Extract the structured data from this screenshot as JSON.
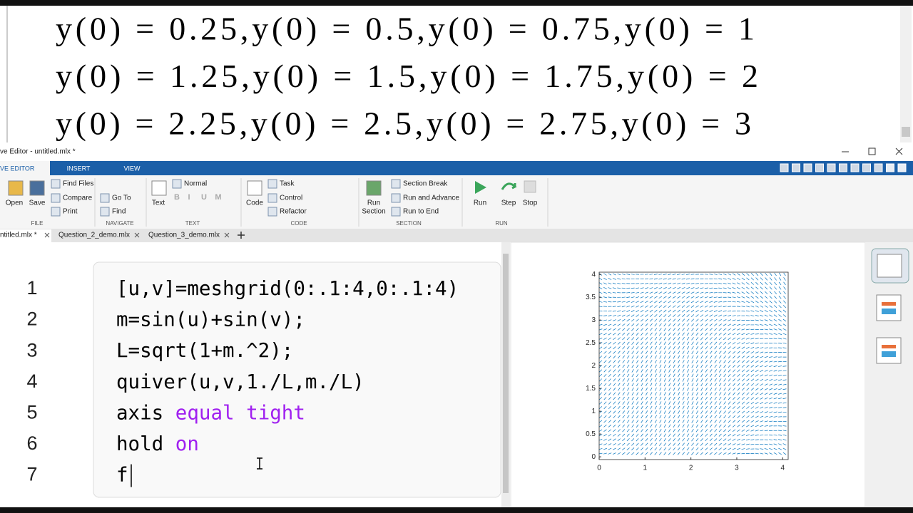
{
  "equations": [
    "y(0) = 0.25,y(0) = 0.5,y(0) = 0.75,y(0) = 1",
    "y(0) = 1.25,y(0) = 1.5,y(0) = 1.75,y(0) = 2",
    "y(0) = 2.25,y(0) = 2.5,y(0) = 2.75,y(0) = 3"
  ],
  "window": {
    "title": "ve Editor - untitled.mlx *"
  },
  "toolstrip": {
    "tabs": [
      "VE EDITOR",
      "INSERT",
      "VIEW"
    ]
  },
  "ribbon": {
    "buttons": [
      "Open",
      "Save",
      "Find Files",
      "Compare",
      "Print",
      "Go To",
      "Find",
      "Text",
      "Normal",
      "B",
      "I",
      "U",
      "M",
      "Code",
      "Task",
      "Control",
      "Refactor",
      "Run",
      "Section",
      "Section Break",
      "Run and Advance",
      "Run to End",
      "Run",
      "Step",
      "Stop"
    ],
    "groups": [
      "FILE",
      "NAVIGATE",
      "TEXT",
      "CODE",
      "SECTION",
      "RUN"
    ]
  },
  "doc_tabs": [
    "ntitled.mlx *",
    "Question_2_demo.mlx",
    "Question_3_demo.mlx"
  ],
  "editor": {
    "line_numbers": [
      1,
      2,
      3,
      4,
      5,
      6,
      7
    ],
    "lines": [
      [
        {
          "text": "[u,v]=meshgrid(0:.1:4,0:.1:4)",
          "color": "#000000"
        }
      ],
      [
        {
          "text": "m=sin(u)+sin(v);",
          "color": "#000000"
        }
      ],
      [
        {
          "text": "L=sqrt(1+m.^2);",
          "color": "#000000"
        }
      ],
      [
        {
          "text": "quiver(u,v,1./L,m./L)",
          "color": "#000000"
        }
      ],
      [
        {
          "text": "axis ",
          "color": "#000000"
        },
        {
          "text": "equal tight",
          "color": "#a020f0"
        }
      ],
      [
        {
          "text": "hold ",
          "color": "#000000"
        },
        {
          "text": "on",
          "color": "#a020f0"
        }
      ],
      [
        {
          "text": "f",
          "color": "#000000"
        }
      ]
    ]
  },
  "figure": {
    "type": "quiver",
    "color": "#0072bd",
    "xlim": [
      0,
      4.12
    ],
    "ylim": [
      -0.06,
      4.05
    ],
    "xticks": [
      0,
      1,
      2,
      3,
      4
    ],
    "yticks": [
      0,
      0.5,
      1,
      1.5,
      2,
      2.5,
      3,
      3.5,
      4
    ]
  }
}
